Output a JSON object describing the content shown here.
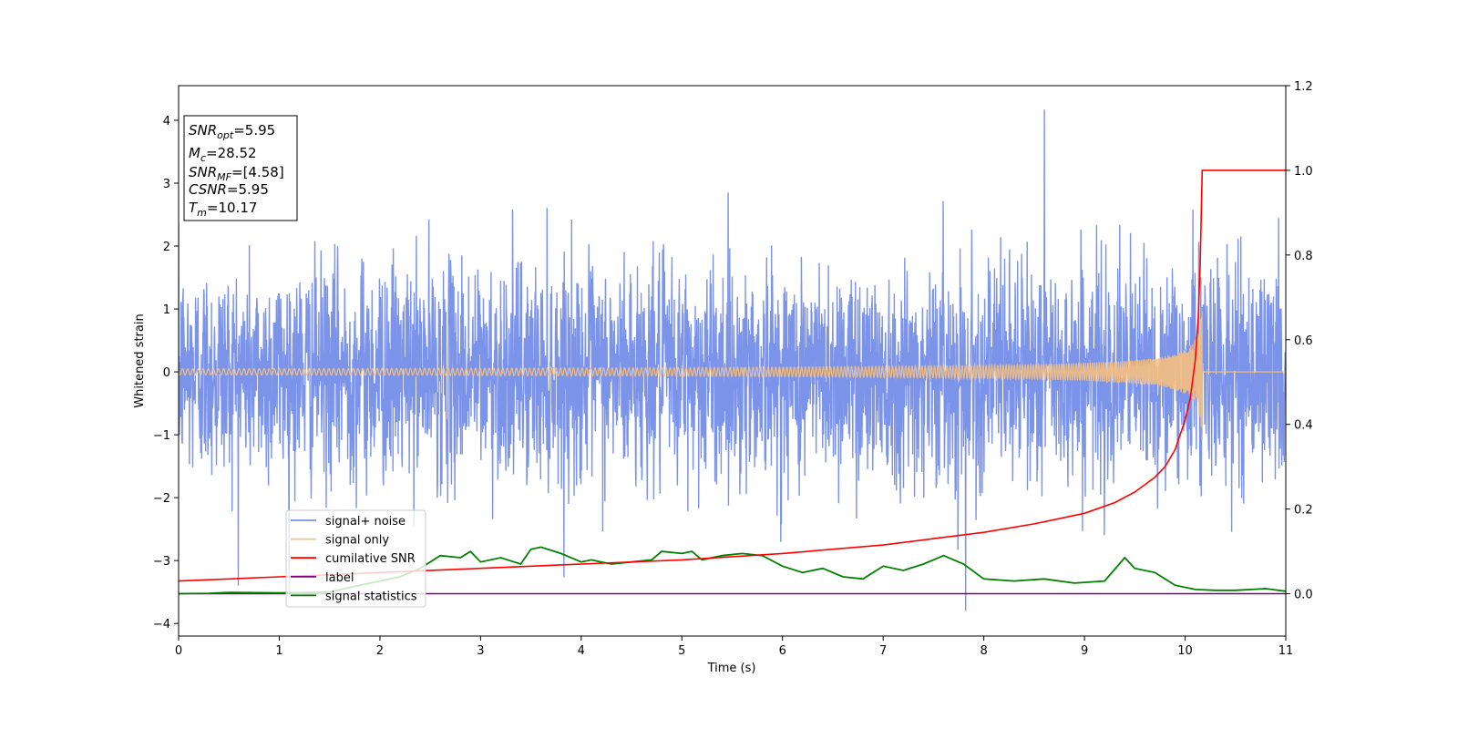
{
  "chart_data": {
    "type": "line",
    "xlabel": "Time (s)",
    "ylabel": "Whitened strain",
    "xlim": [
      0,
      11
    ],
    "ylim_left": [
      -4.2,
      4.55
    ],
    "ylim_right": [
      -0.1,
      1.2
    ],
    "x_ticks": [
      "0",
      "1",
      "2",
      "3",
      "4",
      "5",
      "6",
      "7",
      "8",
      "9",
      "10",
      "11"
    ],
    "y_ticks_left": [
      "−4",
      "−3",
      "−2",
      "−1",
      "0",
      "1",
      "2",
      "3",
      "4"
    ],
    "y_ticks_right": [
      "0.0",
      "0.2",
      "0.4",
      "0.6",
      "0.8",
      "1.0",
      "1.2"
    ],
    "colors": {
      "signal_noise": "#7b93e8",
      "signal_only": "#f5c080",
      "cumulative_snr": "#ff0000",
      "label": "#800080",
      "signal_statistics": "#008000"
    },
    "legend": {
      "placement": "lower-left",
      "entries": [
        "signal+ noise",
        "signal only",
        "cumilative SNR",
        "label",
        "signal statistics"
      ]
    },
    "stats_box": {
      "placement": "top-left",
      "lines": [
        {
          "sym": "SNR",
          "sub": "opt",
          "val": "=5.95"
        },
        {
          "sym": "M",
          "sub": "c",
          "val": "=28.52"
        },
        {
          "sym": "SNR",
          "sub": "MF",
          "val": "=[4.58]"
        },
        {
          "sym": "CSNR",
          "sub": "",
          "val": "=5.95"
        },
        {
          "sym": "T",
          "sub": "m",
          "val": "=10.17"
        }
      ]
    },
    "series": [
      {
        "name": "signal+ noise",
        "axis": "left",
        "description_values": {
          "noise_std": 1.0,
          "max": 4.17,
          "max_at": 8.6,
          "min": -3.8,
          "min_at": 7.82
        }
      },
      {
        "name": "signal only",
        "axis": "left",
        "merger_time": 10.17,
        "peak_amplitude": 1.1
      },
      {
        "name": "cumilative SNR",
        "axis": "right",
        "x": [
          0,
          1,
          2,
          3,
          4,
          5,
          6,
          7,
          7.5,
          8,
          8.5,
          9,
          9.3,
          9.5,
          9.7,
          9.8,
          9.9,
          10.0,
          10.05,
          10.1,
          10.13,
          10.15,
          10.17,
          10.2,
          11
        ],
        "values": [
          0.03,
          0.04,
          0.05,
          0.06,
          0.07,
          0.08,
          0.095,
          0.115,
          0.13,
          0.145,
          0.165,
          0.19,
          0.215,
          0.24,
          0.275,
          0.3,
          0.34,
          0.41,
          0.46,
          0.55,
          0.65,
          0.78,
          1.0,
          1.0,
          1.0
        ]
      },
      {
        "name": "label",
        "axis": "right",
        "x": [
          0,
          11
        ],
        "values": [
          0,
          0
        ]
      },
      {
        "name": "signal statistics",
        "axis": "right",
        "x": [
          0,
          0.3,
          0.5,
          1.0,
          1.5,
          1.8,
          2.0,
          2.2,
          2.4,
          2.6,
          2.8,
          2.9,
          3.0,
          3.2,
          3.4,
          3.5,
          3.6,
          3.8,
          4.0,
          4.1,
          4.2,
          4.3,
          4.5,
          4.7,
          4.8,
          5.0,
          5.1,
          5.2,
          5.4,
          5.6,
          5.8,
          6.0,
          6.2,
          6.4,
          6.6,
          6.8,
          7.0,
          7.2,
          7.4,
          7.6,
          7.8,
          8.0,
          8.3,
          8.6,
          8.9,
          9.2,
          9.4,
          9.5,
          9.7,
          9.9,
          10.1,
          10.3,
          10.5,
          10.8,
          11.0
        ],
        "values": [
          0.0,
          0.001,
          0.003,
          0.002,
          0.004,
          0.02,
          0.03,
          0.04,
          0.06,
          0.09,
          0.085,
          0.1,
          0.075,
          0.085,
          0.07,
          0.105,
          0.11,
          0.095,
          0.075,
          0.08,
          0.075,
          0.07,
          0.075,
          0.08,
          0.1,
          0.095,
          0.1,
          0.08,
          0.09,
          0.095,
          0.09,
          0.065,
          0.05,
          0.06,
          0.04,
          0.035,
          0.065,
          0.055,
          0.07,
          0.09,
          0.07,
          0.035,
          0.03,
          0.035,
          0.025,
          0.03,
          0.085,
          0.06,
          0.05,
          0.02,
          0.01,
          0.008,
          0.008,
          0.012,
          0.006
        ]
      }
    ]
  }
}
